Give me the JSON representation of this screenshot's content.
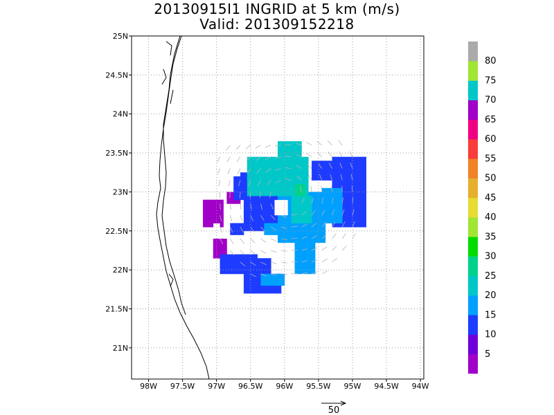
{
  "title": {
    "line1": "20130915I1 INGRID at 5 km (m/s)",
    "line2": "Valid: 201309152218"
  },
  "map": {
    "lon_range": [
      -98.25,
      -93.95
    ],
    "lat_range": [
      20.6,
      25.0
    ],
    "lon_ticks": [
      {
        "value": -98.0,
        "label": "98W"
      },
      {
        "value": -97.5,
        "label": "97.5W"
      },
      {
        "value": -97.0,
        "label": "97W"
      },
      {
        "value": -96.5,
        "label": "96.5W"
      },
      {
        "value": -96.0,
        "label": "96W"
      },
      {
        "value": -95.5,
        "label": "95.5W"
      },
      {
        "value": -95.0,
        "label": "95W"
      },
      {
        "value": -94.5,
        "label": "94.5W"
      },
      {
        "value": -94.0,
        "label": "94W"
      }
    ],
    "lat_ticks": [
      {
        "value": 21.0,
        "label": "21N"
      },
      {
        "value": 21.5,
        "label": "21.5N"
      },
      {
        "value": 22.0,
        "label": "22N"
      },
      {
        "value": 22.5,
        "label": "22.5N"
      },
      {
        "value": 23.0,
        "label": "23N"
      },
      {
        "value": 23.5,
        "label": "23.5N"
      },
      {
        "value": 24.0,
        "label": "24N"
      },
      {
        "value": 24.5,
        "label": "24.5N"
      },
      {
        "value": 25.0,
        "label": "25N"
      }
    ],
    "grid": true
  },
  "colorbar": {
    "levels": [
      {
        "color": "#a000c8",
        "label": "5"
      },
      {
        "color": "#6e00dc",
        "label": "10"
      },
      {
        "color": "#1e3cff",
        "label": "15"
      },
      {
        "color": "#00a0ff",
        "label": "20"
      },
      {
        "color": "#00c8c8",
        "label": "25"
      },
      {
        "color": "#00d28c",
        "label": "30"
      },
      {
        "color": "#00dc00",
        "label": "35"
      },
      {
        "color": "#a0e632",
        "label": "40"
      },
      {
        "color": "#e6dc32",
        "label": "45"
      },
      {
        "color": "#e6af2d",
        "label": "50"
      },
      {
        "color": "#f08228",
        "label": "55"
      },
      {
        "color": "#fa3c3c",
        "label": "60"
      },
      {
        "color": "#f00082",
        "label": "65"
      },
      {
        "color": "#a000c8",
        "label": "70"
      },
      {
        "color": "#00c8c8",
        "label": "75"
      },
      {
        "color": "#a0e632",
        "label": "80"
      },
      {
        "color": "#aaaaaa",
        "label": ""
      }
    ]
  },
  "vector_scale": {
    "label": "50"
  },
  "field": {
    "cell_deg": 0.05,
    "blocks": [
      {
        "lon": [
          -97.2,
          -96.9
        ],
        "lat": [
          22.55,
          22.9
        ],
        "color": "#a000c8"
      },
      {
        "lon": [
          -97.05,
          -96.85
        ],
        "lat": [
          22.15,
          22.4
        ],
        "color": "#a000c8"
      },
      {
        "lon": [
          -96.85,
          -96.65
        ],
        "lat": [
          22.85,
          23.0
        ],
        "color": "#a000c8"
      },
      {
        "lon": [
          -95.0,
          -94.9
        ],
        "lat": [
          22.95,
          23.1
        ],
        "color": "#a000c8"
      },
      {
        "lon": [
          -96.75,
          -96.6
        ],
        "lat": [
          22.9,
          23.2
        ],
        "color": "#1e3cff"
      },
      {
        "lon": [
          -96.6,
          -96.1
        ],
        "lat": [
          22.5,
          22.95
        ],
        "color": "#1e3cff"
      },
      {
        "lon": [
          -96.8,
          -96.6
        ],
        "lat": [
          22.45,
          22.6
        ],
        "color": "#1e3cff"
      },
      {
        "lon": [
          -96.95,
          -96.2
        ],
        "lat": [
          21.95,
          22.2
        ],
        "color": "#1e3cff"
      },
      {
        "lon": [
          -96.6,
          -96.05
        ],
        "lat": [
          21.7,
          21.95
        ],
        "color": "#1e3cff"
      },
      {
        "lon": [
          -95.3,
          -94.8
        ],
        "lat": [
          22.55,
          23.45
        ],
        "color": "#1e3cff"
      },
      {
        "lon": [
          -96.65,
          -96.2
        ],
        "lat": [
          22.95,
          23.25
        ],
        "color": "#1e3cff"
      },
      {
        "lon": [
          -95.6,
          -95.3
        ],
        "lat": [
          23.15,
          23.4
        ],
        "color": "#1e3cff"
      },
      {
        "lon": [
          -96.1,
          -95.4
        ],
        "lat": [
          22.35,
          23.0
        ],
        "color": "#00a0ff"
      },
      {
        "lon": [
          -96.3,
          -95.9
        ],
        "lat": [
          22.45,
          22.6
        ],
        "color": "#00a0ff"
      },
      {
        "lon": [
          -95.85,
          -95.55
        ],
        "lat": [
          21.95,
          22.35
        ],
        "color": "#00a0ff"
      },
      {
        "lon": [
          -96.35,
          -96.0
        ],
        "lat": [
          21.8,
          21.95
        ],
        "color": "#00a0ff"
      },
      {
        "lon": [
          -95.45,
          -95.15
        ],
        "lat": [
          22.6,
          23.05
        ],
        "color": "#00a0ff"
      },
      {
        "lon": [
          -96.55,
          -95.65
        ],
        "lat": [
          22.95,
          23.45
        ],
        "color": "#00c8c8"
      },
      {
        "lon": [
          -96.1,
          -95.75
        ],
        "lat": [
          23.45,
          23.65
        ],
        "color": "#00c8c8"
      },
      {
        "lon": [
          -95.9,
          -95.6
        ],
        "lat": [
          22.6,
          22.95
        ],
        "color": "#00c8c8"
      },
      {
        "lon": [
          -95.85,
          -95.7
        ],
        "lat": [
          22.95,
          23.1
        ],
        "color": "#00d28c"
      }
    ],
    "holes": [
      {
        "lon": [
          -96.15,
          -95.95
        ],
        "lat": [
          22.7,
          22.9
        ]
      },
      {
        "lon": [
          -96.4,
          -96.2
        ],
        "lat": [
          22.15,
          22.35
        ]
      },
      {
        "lon": [
          -97.05,
          -96.95
        ],
        "lat": [
          22.5,
          22.6
        ]
      }
    ]
  }
}
